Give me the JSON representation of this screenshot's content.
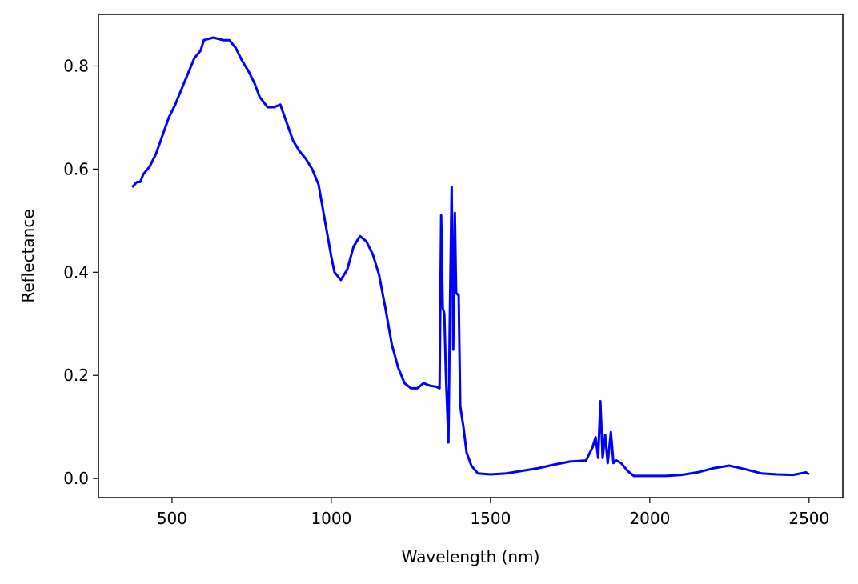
{
  "chart_data": {
    "type": "line",
    "xlabel": "Wavelength (nm)",
    "ylabel": "Reflectance",
    "xlim": [
      269,
      2606
    ],
    "ylim": [
      -0.037,
      0.9
    ],
    "xticks": [
      500,
      1000,
      1500,
      2000,
      2500
    ],
    "yticks": [
      {
        "value": 0,
        "label": "0.0"
      },
      0.2,
      0.4,
      0.6,
      0.8
    ],
    "grid": false,
    "series": [
      {
        "name": "Reflectance",
        "color": "#0000ff",
        "x": [
          375,
          390,
          400,
          410,
          430,
          450,
          470,
          490,
          510,
          530,
          550,
          570,
          590,
          600,
          630,
          660,
          680,
          700,
          720,
          740,
          760,
          775,
          800,
          820,
          840,
          860,
          880,
          900,
          920,
          940,
          960,
          980,
          1000,
          1010,
          1030,
          1050,
          1070,
          1090,
          1110,
          1130,
          1150,
          1170,
          1190,
          1210,
          1230,
          1250,
          1270,
          1290,
          1310,
          1330,
          1340,
          1345,
          1350,
          1355,
          1360,
          1368,
          1372,
          1378,
          1383,
          1388,
          1392,
          1400,
          1405,
          1415,
          1425,
          1440,
          1460,
          1500,
          1550,
          1600,
          1650,
          1700,
          1750,
          1800,
          1820,
          1830,
          1838,
          1845,
          1852,
          1860,
          1868,
          1878,
          1886,
          1895,
          1910,
          1930,
          1950,
          2000,
          2050,
          2100,
          2150,
          2200,
          2250,
          2300,
          2350,
          2400,
          2450,
          2490,
          2500
        ],
        "values": [
          0.565,
          0.575,
          0.575,
          0.59,
          0.605,
          0.63,
          0.665,
          0.7,
          0.725,
          0.755,
          0.785,
          0.815,
          0.83,
          0.85,
          0.855,
          0.85,
          0.85,
          0.835,
          0.81,
          0.79,
          0.765,
          0.74,
          0.72,
          0.72,
          0.725,
          0.69,
          0.655,
          0.635,
          0.62,
          0.6,
          0.57,
          0.5,
          0.43,
          0.4,
          0.385,
          0.405,
          0.45,
          0.47,
          0.46,
          0.435,
          0.395,
          0.33,
          0.26,
          0.215,
          0.185,
          0.175,
          0.175,
          0.185,
          0.18,
          0.178,
          0.175,
          0.51,
          0.33,
          0.32,
          0.2,
          0.07,
          0.3,
          0.565,
          0.25,
          0.515,
          0.36,
          0.355,
          0.14,
          0.1,
          0.05,
          0.025,
          0.01,
          0.008,
          0.01,
          0.015,
          0.02,
          0.027,
          0.033,
          0.035,
          0.06,
          0.08,
          0.04,
          0.15,
          0.04,
          0.085,
          0.03,
          0.09,
          0.03,
          0.035,
          0.03,
          0.015,
          0.005,
          0.005,
          0.005,
          0.007,
          0.012,
          0.02,
          0.025,
          0.018,
          0.01,
          0.008,
          0.007,
          0.012,
          0.008
        ]
      }
    ]
  }
}
